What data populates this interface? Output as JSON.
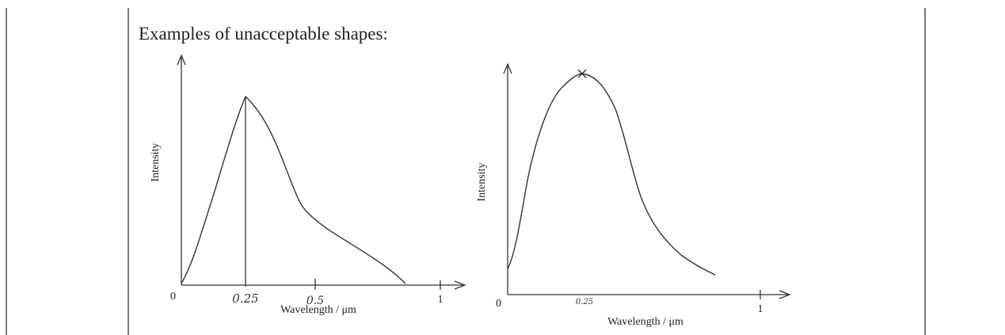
{
  "title": "Examples of unacceptable shapes:",
  "figures": [
    {
      "y_label": "Intensity",
      "x_label": "Wavelength / μm",
      "origin_label": "0",
      "tick_labels": [
        "0.25",
        "0.5",
        "1"
      ]
    },
    {
      "y_label": "Intensity",
      "x_label": "Wavelength / μm",
      "origin_label": "0",
      "tick_labels": [
        "0.25",
        "1"
      ]
    }
  ]
}
